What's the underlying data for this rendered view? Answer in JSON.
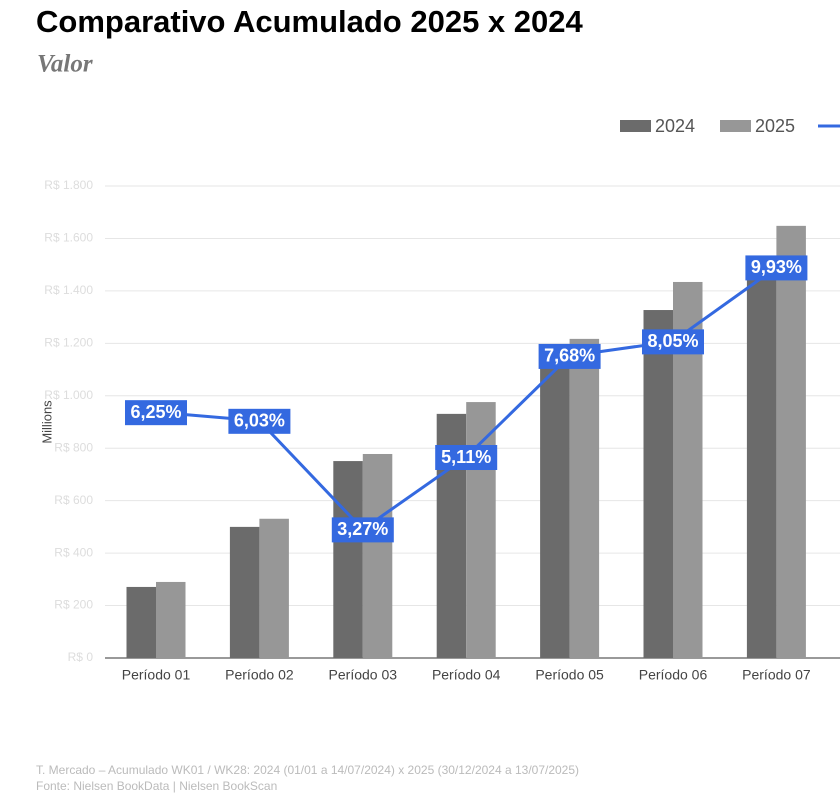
{
  "chart_data": {
    "type": "bar",
    "title": "Comparativo Acumulado 2025 x 2024",
    "subtitle": "Valor",
    "y_axis_label": "Millions",
    "categories": [
      "Período 01",
      "Período 02",
      "Período 03",
      "Período 04",
      "Período 05",
      "Período 06",
      "Período 07"
    ],
    "series": [
      {
        "name": "2024",
        "color": "#6b6b6b",
        "values": [
          271,
          500,
          751,
          931,
          1130,
          1327,
          1500
        ]
      },
      {
        "name": "2025",
        "color": "#979797",
        "values": [
          290,
          531,
          778,
          976,
          1217,
          1434,
          1648
        ]
      },
      {
        "type": "line",
        "axis": "y2",
        "color": "#3469e0",
        "values": [
          6.25,
          6.03,
          3.27,
          5.11,
          7.68,
          8.05,
          9.93
        ],
        "value_labels": [
          "6,25%",
          "6,03%",
          "3,27%",
          "5,11%",
          "7,68%",
          "8,05%",
          "9,93%"
        ]
      }
    ],
    "ylim": [
      0,
      1800
    ],
    "yticks": [
      {
        "value": 0,
        "label": "R$ 0"
      },
      {
        "value": 200,
        "label": "R$ 200"
      },
      {
        "value": 400,
        "label": "R$ 400"
      },
      {
        "value": 600,
        "label": "R$ 600"
      },
      {
        "value": 800,
        "label": "R$ 800"
      },
      {
        "value": 1000,
        "label": "R$ 1.000"
      },
      {
        "value": 1200,
        "label": "R$ 1.200"
      },
      {
        "value": 1400,
        "label": "R$ 1.400"
      },
      {
        "value": 1600,
        "label": "R$ 1.600"
      },
      {
        "value": 1800,
        "label": "R$ 1.800"
      }
    ],
    "y2lim": [
      0,
      12
    ],
    "grid": true,
    "legend": "top-right",
    "footnotes": [
      "T. Mercado – Acumulado WK01 / WK28: 2024 (01/01 a 14/07/2024) x 2025 (30/12/2024 a 13/07/2025)",
      "Fonte: Nielsen BookData | Nielsen BookScan"
    ]
  }
}
